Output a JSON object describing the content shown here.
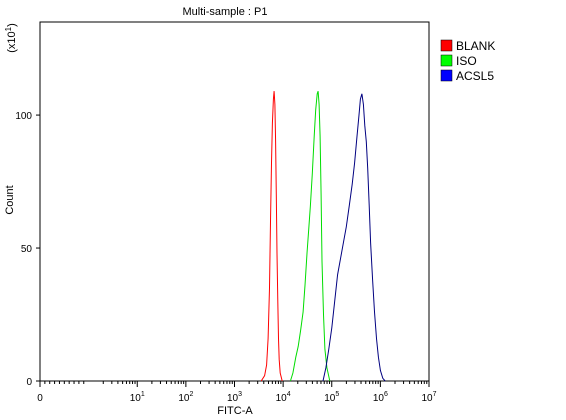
{
  "chart_data": {
    "type": "line",
    "title": "Multi-sample : P1",
    "xlabel": "FITC-A",
    "ylabel": "Count",
    "y_multiplier_label": "(x10",
    "y_multiplier_exponent": "1",
    "x_scale": "log",
    "xlim": [
      0,
      10000000
    ],
    "ylim": [
      0,
      135
    ],
    "y_ticks": [
      {
        "value": 0,
        "label": "0"
      },
      {
        "value": 50,
        "label": "50"
      },
      {
        "value": 100,
        "label": "100"
      }
    ],
    "x_ticks": [
      {
        "exp": 0,
        "label": "0",
        "sup": ""
      },
      {
        "exp": 1,
        "label": "10",
        "sup": "1"
      },
      {
        "exp": 2,
        "label": "10",
        "sup": "2"
      },
      {
        "exp": 3,
        "label": "10",
        "sup": "3"
      },
      {
        "exp": 4,
        "label": "10",
        "sup": "4"
      },
      {
        "exp": 5,
        "label": "10",
        "sup": "5"
      },
      {
        "exp": 6,
        "label": "10",
        "sup": "6"
      },
      {
        "exp": 7,
        "label": "10",
        "sup": "7"
      }
    ],
    "legend_position": "top-right",
    "grid": false,
    "series": [
      {
        "name": "BLANK",
        "color": "#ff0000",
        "legend_color": "#ff0000",
        "points": [
          [
            3.55,
            0
          ],
          [
            3.62,
            2
          ],
          [
            3.66,
            6
          ],
          [
            3.69,
            16
          ],
          [
            3.72,
            35
          ],
          [
            3.74,
            60
          ],
          [
            3.76,
            82
          ],
          [
            3.78,
            97
          ],
          [
            3.8,
            106
          ],
          [
            3.815,
            109
          ],
          [
            3.83,
            104
          ],
          [
            3.845,
            90
          ],
          [
            3.86,
            70
          ],
          [
            3.875,
            48
          ],
          [
            3.89,
            30
          ],
          [
            3.905,
            16
          ],
          [
            3.92,
            8
          ],
          [
            3.94,
            3
          ],
          [
            3.98,
            0
          ]
        ]
      },
      {
        "name": "ISO",
        "color": "#00dd00",
        "legend_color": "#00ff00",
        "points": [
          [
            4.15,
            0
          ],
          [
            4.2,
            3
          ],
          [
            4.26,
            9
          ],
          [
            4.31,
            13
          ],
          [
            4.36,
            19
          ],
          [
            4.41,
            26
          ],
          [
            4.45,
            36
          ],
          [
            4.49,
            48
          ],
          [
            4.53,
            58
          ],
          [
            4.56,
            66
          ],
          [
            4.6,
            78
          ],
          [
            4.64,
            92
          ],
          [
            4.67,
            102
          ],
          [
            4.7,
            108
          ],
          [
            4.72,
            109
          ],
          [
            4.74,
            104
          ],
          [
            4.76,
            92
          ],
          [
            4.78,
            70
          ],
          [
            4.8,
            45
          ],
          [
            4.83,
            25
          ],
          [
            4.86,
            12
          ],
          [
            4.9,
            5
          ],
          [
            4.96,
            0
          ]
        ]
      },
      {
        "name": "ACSL5",
        "color": "#000080",
        "legend_color": "#0000ff",
        "points": [
          [
            4.82,
            0
          ],
          [
            4.88,
            5
          ],
          [
            4.94,
            12
          ],
          [
            5.0,
            20
          ],
          [
            5.06,
            30
          ],
          [
            5.12,
            40
          ],
          [
            5.18,
            46
          ],
          [
            5.24,
            52
          ],
          [
            5.3,
            58
          ],
          [
            5.36,
            66
          ],
          [
            5.42,
            74
          ],
          [
            5.47,
            82
          ],
          [
            5.52,
            92
          ],
          [
            5.56,
            100
          ],
          [
            5.59,
            106
          ],
          [
            5.62,
            108
          ],
          [
            5.65,
            104
          ],
          [
            5.68,
            96
          ],
          [
            5.71,
            90
          ],
          [
            5.74,
            80
          ],
          [
            5.77,
            66
          ],
          [
            5.8,
            52
          ],
          [
            5.84,
            38
          ],
          [
            5.88,
            26
          ],
          [
            5.92,
            16
          ],
          [
            5.96,
            9
          ],
          [
            6.0,
            4
          ],
          [
            6.05,
            1
          ],
          [
            6.1,
            0
          ]
        ]
      }
    ]
  }
}
